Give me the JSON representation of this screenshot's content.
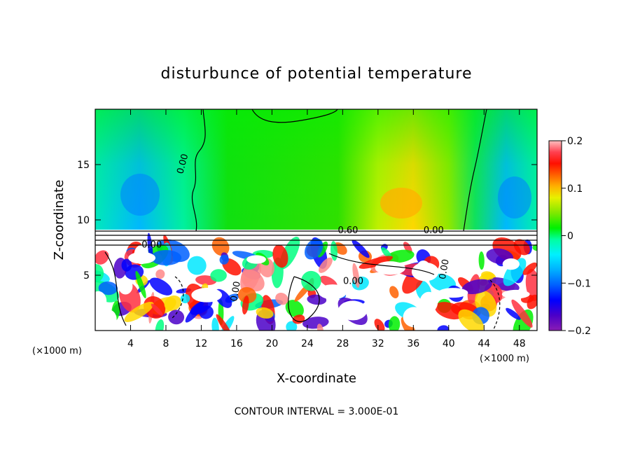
{
  "chart_data": {
    "type": "heatmap",
    "title": "disturbunce of potential temperature",
    "xlabel": "X-coordinate",
    "ylabel": "Z-coordinate",
    "x_unit": "(×1000 m)",
    "y_unit": "(×1000 m)",
    "xlim": [
      0,
      50
    ],
    "ylim": [
      0,
      20
    ],
    "x_ticks": [
      4,
      8,
      12,
      16,
      20,
      24,
      28,
      32,
      36,
      40,
      44,
      48
    ],
    "y_ticks": [
      5,
      10,
      15
    ],
    "colorbar": {
      "range": [
        -0.2,
        0.2
      ],
      "tick_values": [
        0.2,
        0.1,
        0,
        -0.1,
        -0.2
      ],
      "tick_labels": [
        "0.2",
        "0.1",
        "0",
        "−0.1",
        "−0.2"
      ],
      "colors": [
        "#8a1db5",
        "#4b00c8",
        "#0000ff",
        "#0050ff",
        "#0096ff",
        "#00d8ff",
        "#00ffd0",
        "#00ff80",
        "#00f000",
        "#40e000",
        "#a0e800",
        "#e0f000",
        "#ffd800",
        "#ffa000",
        "#ff6000",
        "#ff1000",
        "#ff3040",
        "#ff8888",
        "#ffc0c0"
      ]
    },
    "contour_interval_text": "CONTOUR INTERVAL = 3.000E-01",
    "contour_labels": [
      {
        "text": "0.00",
        "x": 10.2,
        "y": 15.0,
        "rotate": -75
      },
      {
        "text": "0.60",
        "x": 28.6,
        "y": 8.8,
        "rotate": 0
      },
      {
        "text": "0.00",
        "x": 38.3,
        "y": 8.8,
        "rotate": 0
      },
      {
        "text": "0.00",
        "x": 6.4,
        "y": 7.5,
        "rotate": 0
      },
      {
        "text": "0.00",
        "x": 29.2,
        "y": 4.2,
        "rotate": 0
      },
      {
        "text": "0.00",
        "x": 16.2,
        "y": 3.5,
        "rotate": -80
      },
      {
        "text": "0.00",
        "x": 39.8,
        "y": 5.5,
        "rotate": -80
      }
    ]
  }
}
